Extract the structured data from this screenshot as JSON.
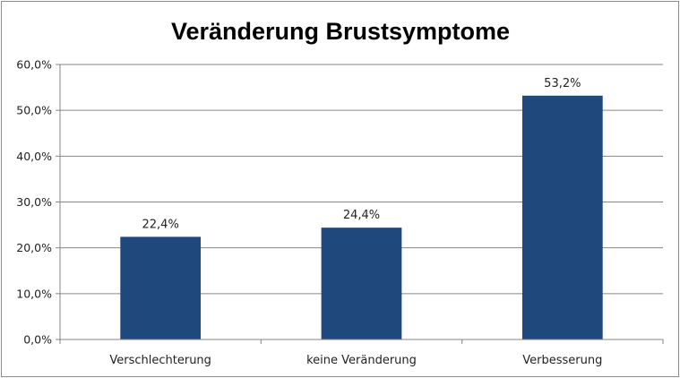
{
  "chart_data": {
    "type": "bar",
    "title": "Veränderung Brustsymptome",
    "xlabel": "",
    "ylabel": "",
    "categories": [
      "Verschlechterung",
      "keine Veränderung",
      "Verbesserung"
    ],
    "values": [
      22.4,
      24.4,
      53.2
    ],
    "value_labels": [
      "22,4%",
      "24,4%",
      "53,2%"
    ],
    "ylim": [
      0,
      60
    ],
    "yticks": [
      0,
      10,
      20,
      30,
      40,
      50,
      60
    ],
    "ytick_labels": [
      "0,0%",
      "10,0%",
      "20,0%",
      "30,0%",
      "40,0%",
      "50,0%",
      "60,0%"
    ],
    "grid": true,
    "legend": "none",
    "bar_color": "#1f497d",
    "grid_color": "#868686"
  }
}
